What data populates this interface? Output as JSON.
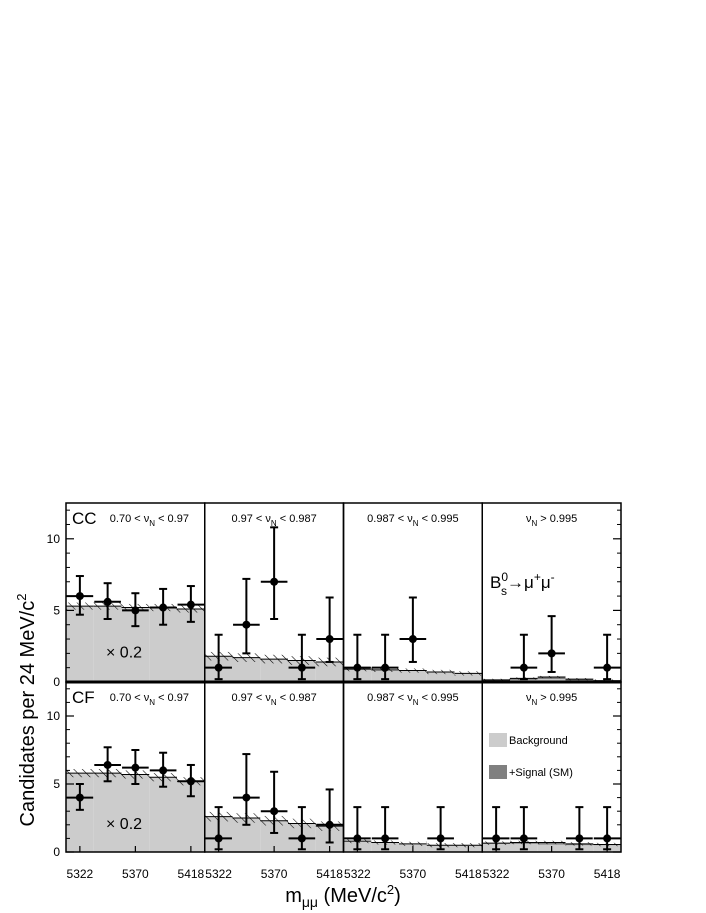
{
  "chart_data": {
    "type": "bar",
    "ylabel_main": "Candidates per 24 MeV/c",
    "ylabel_sup": "2",
    "xlabel_main": "m",
    "xlabel_sub": "μμ",
    "xlabel_unit": " (MeV/c",
    "xlabel_unit_sup": "2",
    "xlabel_close": ")",
    "x_tick_labels": [
      "5322",
      "5370",
      "5418"
    ],
    "ylim": [
      0,
      12.5
    ],
    "y_ticks": [
      "0",
      "5",
      "10"
    ],
    "bins_per_panel": 5,
    "bin_width_mev": 24,
    "xlim": [
      5300,
      5420
    ],
    "scale_label": "× 0.2",
    "decay_label": {
      "B": "B",
      "sup": "0",
      "sub": "s",
      "arrow": "→μ",
      "sup2": "+",
      "mu2": "μ",
      "sup3": "-"
    },
    "legend": [
      {
        "label": "Background",
        "color": "#cccccc"
      },
      {
        "label": "+Signal (SM)",
        "color": "#808080"
      }
    ],
    "colors": {
      "background": "#cccccc",
      "signal": "#808080",
      "frame": "#000000"
    },
    "rows": [
      {
        "tag": "CC",
        "panels": [
          {
            "cut": {
              "pre": "0.70 < ν",
              "sub": "N",
              "post": " < 0.97"
            },
            "scaled": true,
            "background": [
              5.3,
              5.3,
              5.2,
              5.2,
              5.1
            ],
            "band": 0.5,
            "signal": [
              0,
              0,
              0,
              0,
              0
            ],
            "data": [
              6,
              5.6,
              5,
              5.2,
              5.4
            ],
            "err_hi": [
              1.4,
              1.3,
              1.2,
              1.3,
              1.3
            ],
            "err_lo": [
              1.3,
              1.2,
              1.1,
              1.2,
              1.2
            ]
          },
          {
            "cut": {
              "pre": "0.97 < ν",
              "sub": "N",
              "post": " < 0.987"
            },
            "scaled": false,
            "background": [
              1.8,
              1.7,
              1.6,
              1.5,
              1.4
            ],
            "band": 0.6,
            "signal": [
              0,
              0,
              0,
              0,
              0
            ],
            "data": [
              1,
              4,
              7,
              1,
              3
            ],
            "err_hi": [
              2.3,
              3.2,
              3.8,
              2.3,
              2.9
            ],
            "err_lo": [
              0.8,
              2.0,
              2.6,
              0.8,
              1.6
            ]
          },
          {
            "cut": {
              "pre": "0.987 < ν",
              "sub": "N",
              "post": " < 0.995"
            },
            "scaled": false,
            "background": [
              0.9,
              0.85,
              0.8,
              0.7,
              0.6
            ],
            "band": 0.3,
            "signal": [
              0,
              0,
              0,
              0,
              0
            ],
            "data": [
              1,
              1,
              3,
              0,
              0
            ],
            "err_hi": [
              2.3,
              2.3,
              2.9,
              0,
              0
            ],
            "err_lo": [
              0.8,
              0.8,
              1.6,
              0,
              0
            ]
          },
          {
            "cut": {
              "pre": "ν",
              "sub": "N",
              "post": " > 0.995"
            },
            "scaled": false,
            "background": [
              0.1,
              0.15,
              0.2,
              0.1,
              0.05
            ],
            "band": 0.15,
            "signal": [
              0.05,
              0.1,
              0.15,
              0.1,
              0.05
            ],
            "data": [
              0,
              1,
              2,
              0,
              1
            ],
            "err_hi": [
              0,
              2.3,
              2.6,
              0,
              2.3
            ],
            "err_lo": [
              0,
              0.8,
              1.3,
              0,
              0.8
            ]
          }
        ]
      },
      {
        "tag": "CF",
        "panels": [
          {
            "cut": {
              "pre": "0.70 < ν",
              "sub": "N",
              "post": " < 0.97"
            },
            "scaled": true,
            "background": [
              5.8,
              5.8,
              5.7,
              5.5,
              5.2
            ],
            "band": 0.6,
            "signal": [
              0,
              0,
              0,
              0,
              0
            ],
            "data": [
              4,
              6.4,
              6.2,
              6,
              5.2
            ],
            "err_hi": [
              1.0,
              1.3,
              1.3,
              1.3,
              1.2
            ],
            "err_lo": [
              0.9,
              1.2,
              1.2,
              1.2,
              1.1
            ]
          },
          {
            "cut": {
              "pre": "0.97 < ν",
              "sub": "N",
              "post": " < 0.987"
            },
            "scaled": false,
            "background": [
              2.6,
              2.5,
              2.3,
              2.1,
              1.9
            ],
            "band": 0.7,
            "signal": [
              0,
              0,
              0,
              0,
              0
            ],
            "data": [
              1,
              4,
              3,
              1,
              2
            ],
            "err_hi": [
              2.3,
              3.2,
              2.9,
              2.3,
              2.6
            ],
            "err_lo": [
              0.8,
              2.0,
              1.6,
              0.8,
              1.3
            ]
          },
          {
            "cut": {
              "pre": "0.987 < ν",
              "sub": "N",
              "post": " < 0.995"
            },
            "scaled": false,
            "background": [
              0.8,
              0.7,
              0.6,
              0.5,
              0.5
            ],
            "band": 0.3,
            "signal": [
              0,
              0,
              0,
              0,
              0
            ],
            "data": [
              1,
              1,
              0,
              1,
              0
            ],
            "err_hi": [
              2.3,
              2.3,
              0,
              2.3,
              0
            ],
            "err_lo": [
              0.8,
              0.8,
              0,
              0.8,
              0
            ]
          },
          {
            "cut": {
              "pre": "ν",
              "sub": "N",
              "post": " > 0.995"
            },
            "scaled": false,
            "background": [
              0.6,
              0.6,
              0.55,
              0.5,
              0.5
            ],
            "band": 0.25,
            "signal": [
              0.05,
              0.1,
              0.15,
              0.1,
              0.05
            ],
            "data": [
              1,
              1,
              0,
              1,
              1
            ],
            "err_hi": [
              2.3,
              2.3,
              0,
              2.3,
              2.3
            ],
            "err_lo": [
              0.8,
              0.8,
              0,
              0.8,
              0.8
            ]
          }
        ]
      }
    ]
  }
}
